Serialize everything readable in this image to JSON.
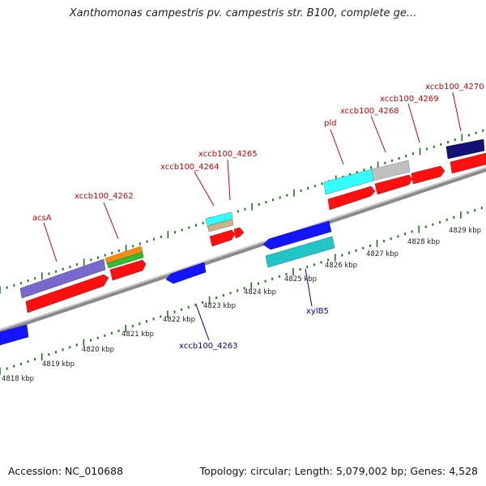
{
  "title": "Xanthomonas campestris pv. campestris str. B100, complete ge...",
  "footer": {
    "accession": "Accession: NC_010688",
    "stats": "Topology: circular; Length: 5,079,002 bp; Genes: 4,528"
  },
  "colors": {
    "forward_label": "#cc0000",
    "reverse_label": "#0000aa",
    "tick": "#1a7a1a",
    "backbone": "#888888"
  },
  "genome_map": {
    "kbp_labels": [
      {
        "text": "4818 kbp",
        "kbp": 4818
      },
      {
        "text": "4819 kbp",
        "kbp": 4819
      },
      {
        "text": "4820 kbp",
        "kbp": 4820
      },
      {
        "text": "4821 kbp",
        "kbp": 4821
      },
      {
        "text": "4822 kbp",
        "kbp": 4822
      },
      {
        "text": "4823 kbp",
        "kbp": 4823
      },
      {
        "text": "4824 kbp",
        "kbp": 4824
      },
      {
        "text": "4825 kbp",
        "kbp": 4825
      },
      {
        "text": "4826 kbp",
        "kbp": 4826
      },
      {
        "text": "4827 kbp",
        "kbp": 4827
      },
      {
        "text": "4828 kbp",
        "kbp": 4828
      },
      {
        "text": "4829 kbp",
        "kbp": 4829
      }
    ],
    "gene_labels": [
      {
        "text": "acsA",
        "strand": "forward"
      },
      {
        "text": "xccb100_4262",
        "strand": "forward"
      },
      {
        "text": "xccb100_4264",
        "strand": "forward"
      },
      {
        "text": "xccb100_4265",
        "strand": "forward"
      },
      {
        "text": "pld",
        "strand": "forward"
      },
      {
        "text": "xccb100_4268",
        "strand": "forward"
      },
      {
        "text": "xccb100_4269",
        "strand": "forward"
      },
      {
        "text": "xccb100_4270",
        "strand": "forward"
      },
      {
        "text": "xccb100_4263",
        "strand": "reverse"
      },
      {
        "text": "xylB5",
        "strand": "reverse"
      }
    ]
  }
}
